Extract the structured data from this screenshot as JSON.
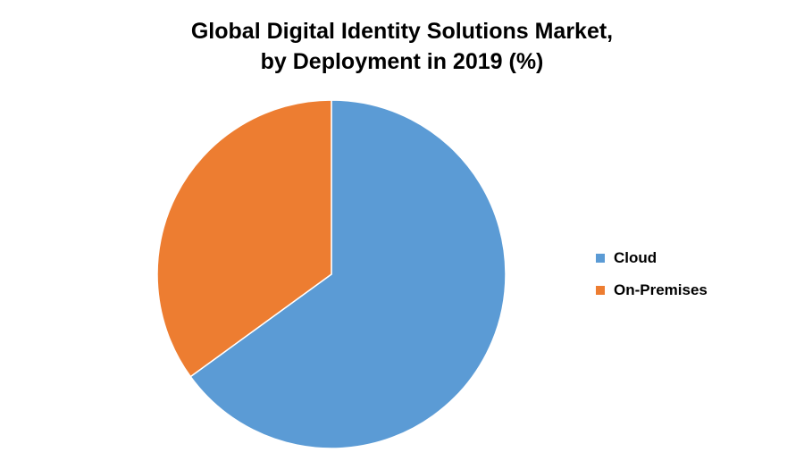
{
  "chart_data": {
    "type": "pie",
    "title_line1": "Global Digital Identity Solutions Market,",
    "title_line2": "by Deployment in 2019 (%)",
    "slices": [
      {
        "name": "Cloud",
        "value": 65,
        "color": "#5B9BD5"
      },
      {
        "name": "On-Premises",
        "value": 35,
        "color": "#ED7D31"
      }
    ],
    "legend_position": "right"
  }
}
